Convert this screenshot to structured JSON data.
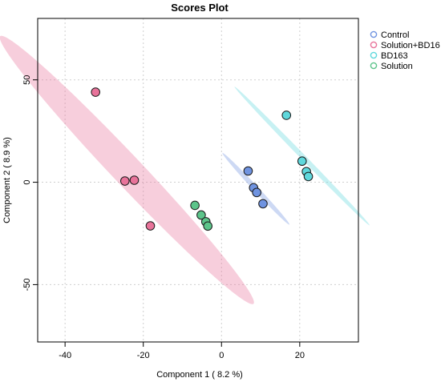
{
  "chart_data": {
    "type": "scatter",
    "title": "Scores Plot",
    "xlabel": "Component 1 ( 8.2 %)",
    "ylabel": "Component 2 ( 8.9 %)",
    "xlim": [
      -47,
      35
    ],
    "ylim": [
      -78,
      80
    ],
    "xticks": [
      -40,
      -20,
      0,
      20
    ],
    "yticks": [
      -50,
      0,
      50
    ],
    "grid": true,
    "legend_position": "top-right",
    "series": [
      {
        "name": "Control",
        "color": "#6f93e0",
        "points": [
          [
            6.8,
            5.5
          ],
          [
            8.2,
            -2.7
          ],
          [
            9.0,
            -5.0
          ],
          [
            10.6,
            -10.5
          ]
        ],
        "ellipse": {
          "cx": 8.8,
          "cy": -3.2,
          "semi_major": 19.5,
          "semi_minor": 0.8,
          "angle_deg": -64
        }
      },
      {
        "name": "Solution+BD16",
        "color": "#e8739a",
        "points": [
          [
            -32.2,
            44.0
          ],
          [
            -24.7,
            0.6
          ],
          [
            -22.3,
            1.0
          ],
          [
            -18.2,
            -21.3
          ]
        ],
        "ellipse": {
          "cx": -24.2,
          "cy": 6.0,
          "semi_major": 73,
          "semi_minor": 4.7,
          "angle_deg": -63.8
        }
      },
      {
        "name": "BD163",
        "color": "#5fd8dc",
        "points": [
          [
            16.6,
            32.7
          ],
          [
            20.6,
            10.3
          ],
          [
            21.7,
            5.2
          ],
          [
            22.2,
            2.8
          ]
        ],
        "ellipse": {
          "cx": 20.6,
          "cy": 12.8,
          "semi_major": 38,
          "semi_minor": 0.8,
          "angle_deg": -63
        }
      },
      {
        "name": "Solution",
        "color": "#5cc48a",
        "points": [
          [
            -6.8,
            -11.3
          ],
          [
            -5.2,
            -16.0
          ],
          [
            -4.0,
            -19.3
          ],
          [
            -3.5,
            -21.4
          ]
        ],
        "ellipse": null
      }
    ]
  }
}
